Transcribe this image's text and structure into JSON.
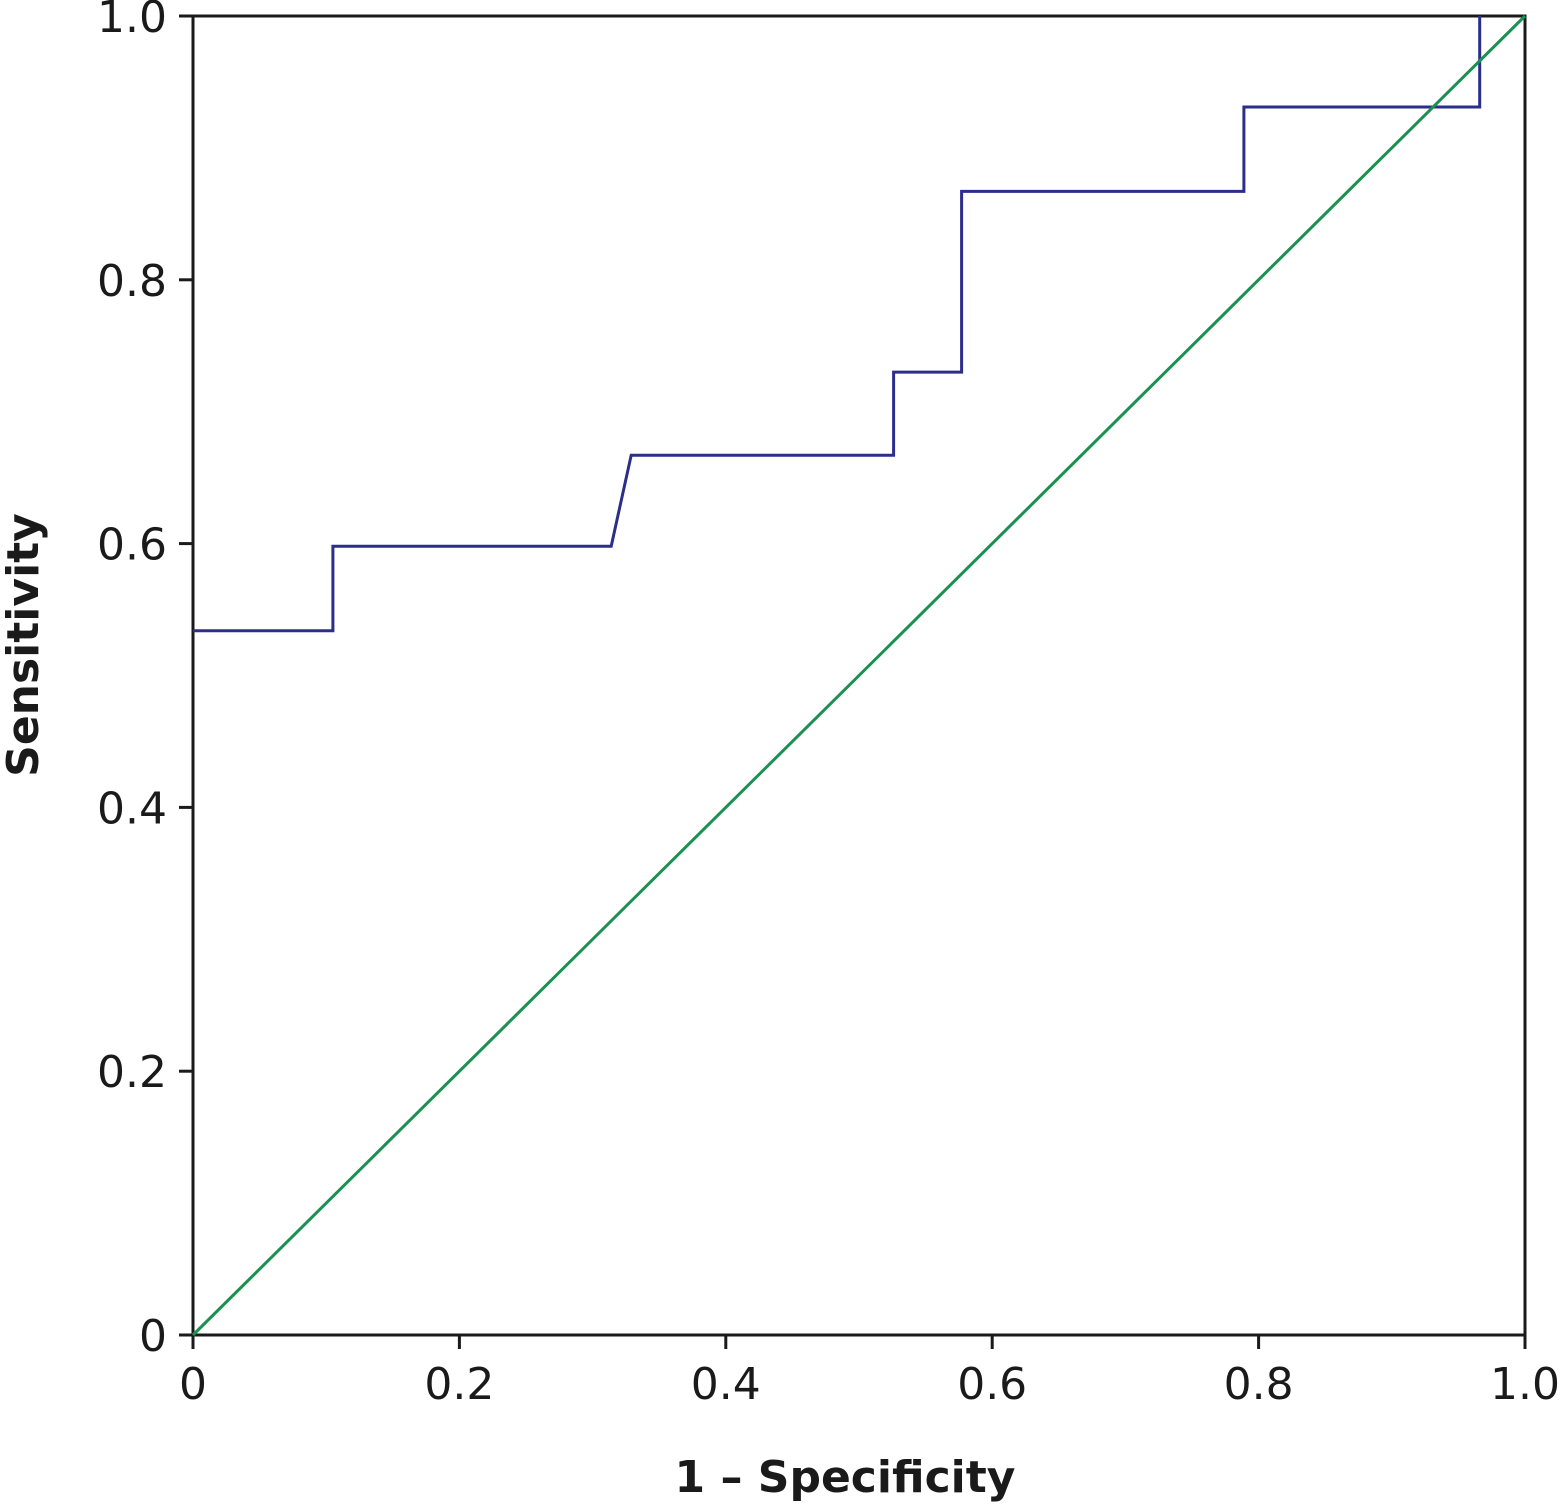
{
  "chart_data": {
    "type": "line",
    "title": "",
    "xlabel": "1 – Specificity",
    "ylabel": "Sensitivity",
    "xlim": [
      0,
      1
    ],
    "ylim": [
      0,
      1
    ],
    "x_ticks": [
      0,
      0.2,
      0.4,
      0.6,
      0.8,
      1.0
    ],
    "y_ticks": [
      0,
      0.2,
      0.4,
      0.6,
      0.8,
      1.0
    ],
    "x_tick_labels": [
      "0",
      "0.2",
      "0.4",
      "0.6",
      "0.8",
      "1.0"
    ],
    "y_tick_labels": [
      "0",
      "0.2",
      "0.4",
      "0.6",
      "0.8",
      "1.0"
    ],
    "grid": false,
    "legend": "none",
    "series": [
      {
        "color": "#2b2f8a",
        "x": [
          0,
          0.105,
          0.105,
          0.314,
          0.329,
          0.526,
          0.526,
          0.577,
          0.577,
          0.789,
          0.789,
          0.966,
          0.966
        ],
        "y": [
          0.534,
          0.534,
          0.598,
          0.598,
          0.667,
          0.667,
          0.73,
          0.73,
          0.867,
          0.867,
          0.931,
          0.931,
          1.0
        ]
      },
      {
        "color": "#1a9150",
        "x": [
          0,
          1
        ],
        "y": [
          0,
          1
        ]
      }
    ]
  }
}
